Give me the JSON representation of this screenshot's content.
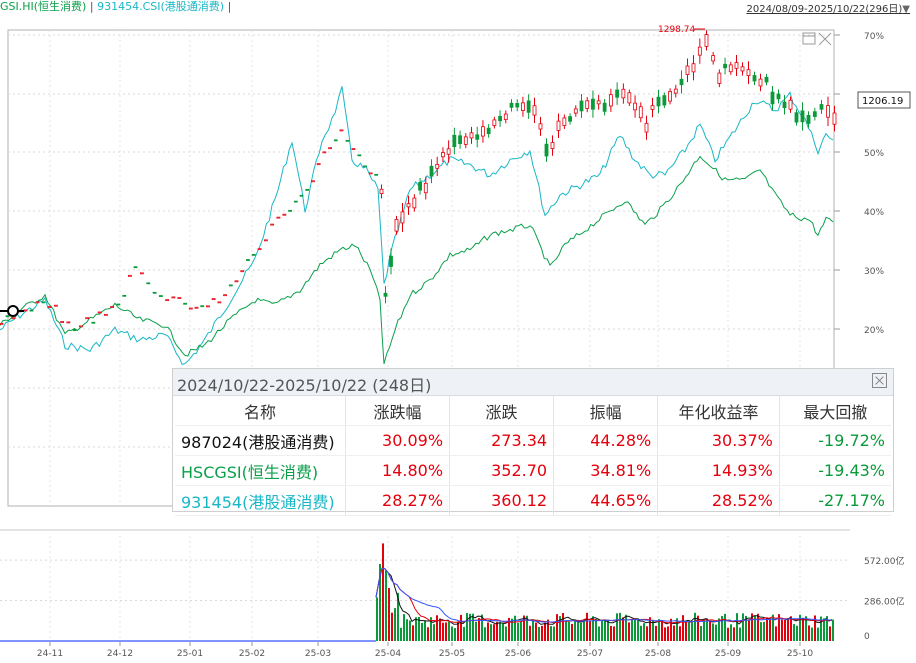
{
  "header": {
    "legend_series1": "GSI.HI(恒生消费)",
    "legend_separator": "|",
    "legend_series2": "931454.CSI(港股通消费)",
    "legend_end": "|",
    "date_range": "2024/08/09-2025/10/22(296日)",
    "dropdown_icon": "triangle-down-icon"
  },
  "chart_data": [
    {
      "type": "line",
      "series": [
        {
          "name": "987024(港股通消费)",
          "style": "candlestick",
          "color": "#e5000d"
        },
        {
          "name": "HSCGSI(恒生消费)",
          "color": "#0aa04a"
        },
        {
          "name": "931454(港股通消费)",
          "color": "#19b7c6"
        }
      ],
      "y_axis_ticks": [
        "70%",
        "50%",
        "40%",
        "30%",
        "20%"
      ],
      "ylim": [
        0,
        75
      ],
      "annotations": {
        "peak_label": "1298.74",
        "current_price": "1206.19"
      },
      "grid": true
    },
    {
      "type": "bar",
      "x_tick_labels": [
        "24-11",
        "24-12",
        "25-01",
        "25-02",
        "25-03",
        "25-04",
        "25-05",
        "25-06",
        "25-07",
        "25-08",
        "25-09",
        "25-10"
      ],
      "y_axis_ticks": [
        "572.00亿",
        "286.00亿",
        "0"
      ],
      "ylim": [
        0,
        700
      ]
    }
  ],
  "popup": {
    "title": "2024/10/22-2025/10/22 (248日)",
    "close_icon": "close-icon",
    "columns": [
      "名称",
      "涨跌幅",
      "涨跌",
      "振幅",
      "年化收益率",
      "最大回撤"
    ],
    "rows": [
      {
        "name": "987024(港股通消费)",
        "change_pct": "30.09%",
        "change": "273.34",
        "amplitude": "44.28%",
        "annualized": "30.37%",
        "max_drawdown": "-19.72%"
      },
      {
        "name": "HSCGSI(恒生消费)",
        "change_pct": "14.80%",
        "change": "352.70",
        "amplitude": "34.81%",
        "annualized": "14.93%",
        "max_drawdown": "-19.43%"
      },
      {
        "name": "931454(港股通消费)",
        "change_pct": "28.27%",
        "change": "360.12",
        "amplitude": "44.65%",
        "annualized": "28.52%",
        "max_drawdown": "-27.17%"
      }
    ]
  }
}
